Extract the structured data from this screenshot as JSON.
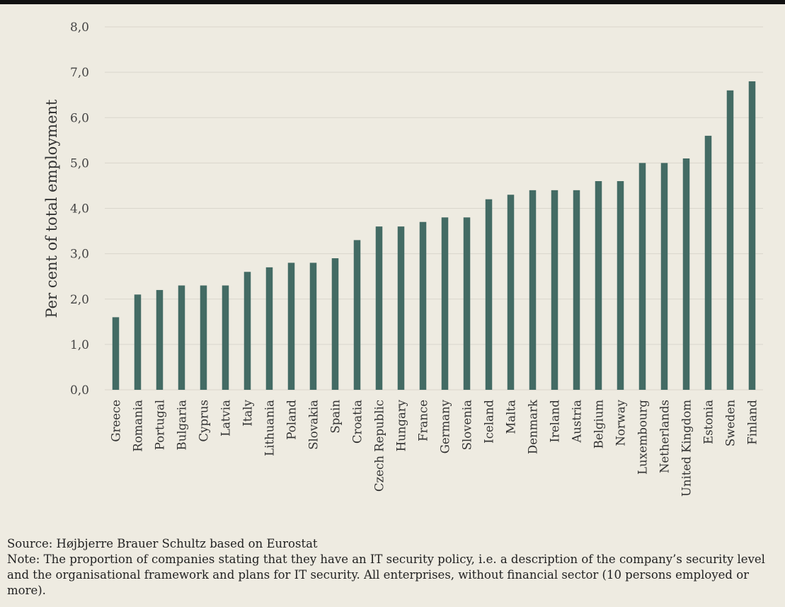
{
  "chart_data": {
    "type": "bar",
    "ylabel": "Per cent of total employment",
    "ylim": [
      0,
      8
    ],
    "yticks": [
      "0,0",
      "1,0",
      "2,0",
      "3,0",
      "4,0",
      "5,0",
      "6,0",
      "7,0",
      "8,0"
    ],
    "grid": true,
    "categories": [
      "Greece",
      "Romania",
      "Portugal",
      "Bulgaria",
      "Cyprus",
      "Latvia",
      "Italy",
      "Lithuania",
      "Poland",
      "Slovakia",
      "Spain",
      "Croatia",
      "Czech Republic",
      "Hungary",
      "France",
      "Germany",
      "Slovenia",
      "Iceland",
      "Malta",
      "Denmark",
      "Ireland",
      "Austria",
      "Belgium",
      "Norway",
      "Luxembourg",
      "Netherlands",
      "United Kingdom",
      "Estonia",
      "Sweden",
      "Finland"
    ],
    "values": [
      1.6,
      2.1,
      2.2,
      2.3,
      2.3,
      2.3,
      2.6,
      2.7,
      2.8,
      2.8,
      2.9,
      3.3,
      3.6,
      3.6,
      3.7,
      3.8,
      3.8,
      4.2,
      4.3,
      4.4,
      4.4,
      4.4,
      4.6,
      4.6,
      5.0,
      5.0,
      5.1,
      5.6,
      6.6,
      6.8
    ],
    "bar_color": "#436b64",
    "grid_color": "#d9d6cc"
  },
  "notes": {
    "source": "Source: Højbjerre Brauer Schultz based on Eurostat",
    "note": "Note: The proportion of companies stating that they have an IT security policy, i.e. a description of the company’s security level and the organisational framework and plans for IT security. All enterprises, without financial sector (10 persons employed or more)."
  }
}
